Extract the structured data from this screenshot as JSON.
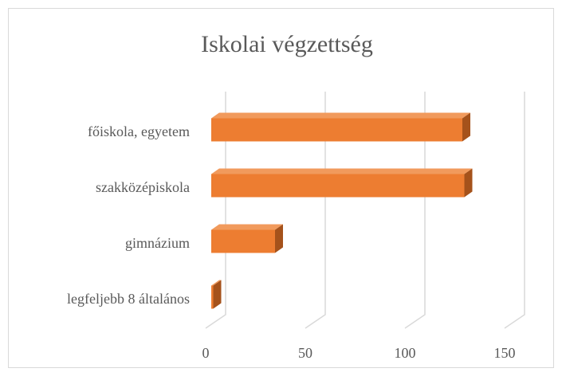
{
  "chart_data": {
    "type": "bar3d",
    "title": "Iskolai végzettség",
    "categories": [
      "legfeljebb 8 általános",
      "gimnázium",
      "szakközépiskola",
      "főiskola, egyetem"
    ],
    "values": [
      1,
      32,
      127,
      126
    ],
    "color": "#ED7D31",
    "xlim": [
      0,
      150
    ],
    "xticks": [
      0,
      50,
      100,
      150
    ],
    "grid": true
  }
}
